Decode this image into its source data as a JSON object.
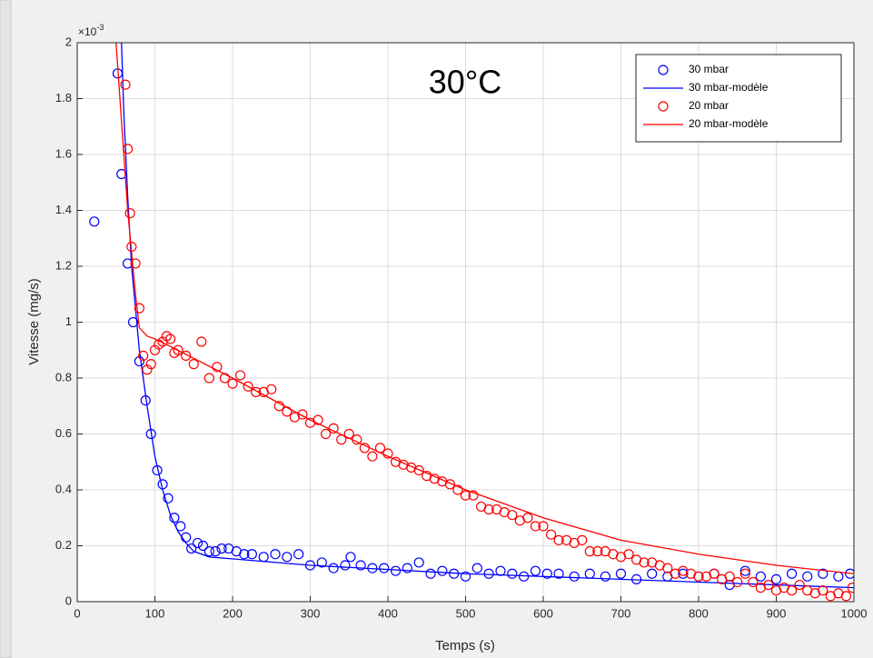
{
  "chart_data": {
    "type": "scatter",
    "annotation": "30°C",
    "xlabel": "Temps (s)",
    "ylabel": "Vitesse (mg/s)",
    "y_multiplier": {
      "base": "×10",
      "exponent": "-3"
    },
    "xlim": [
      0,
      1000
    ],
    "ylim": [
      0,
      2
    ],
    "xticks": [
      0,
      100,
      200,
      300,
      400,
      500,
      600,
      700,
      800,
      900,
      1000
    ],
    "yticks": [
      0,
      0.2,
      0.4,
      0.6,
      0.8,
      1,
      1.2,
      1.4,
      1.6,
      1.8,
      2
    ],
    "grid": true,
    "legend": "northeast",
    "series": [
      {
        "name": "30 mbar",
        "type": "scatter",
        "color": "#0000ff",
        "x": [
          22,
          52,
          57,
          65,
          72,
          80,
          88,
          95,
          103,
          110,
          117,
          125,
          133,
          140,
          147,
          155,
          162,
          170,
          178,
          186,
          195,
          205,
          215,
          225,
          240,
          255,
          270,
          285,
          300,
          315,
          330,
          345,
          352,
          365,
          380,
          395,
          410,
          425,
          440,
          455,
          470,
          485,
          500,
          515,
          530,
          545,
          560,
          575,
          590,
          605,
          620,
          640,
          660,
          680,
          700,
          720,
          740,
          760,
          780,
          800,
          820,
          840,
          860,
          880,
          900,
          920,
          940,
          960,
          980,
          995
        ],
        "values": [
          1.36,
          1.89,
          1.53,
          1.21,
          1.0,
          0.86,
          0.72,
          0.6,
          0.47,
          0.42,
          0.37,
          0.3,
          0.27,
          0.23,
          0.19,
          0.21,
          0.2,
          0.18,
          0.18,
          0.19,
          0.19,
          0.18,
          0.17,
          0.17,
          0.16,
          0.17,
          0.16,
          0.17,
          0.13,
          0.14,
          0.12,
          0.13,
          0.16,
          0.13,
          0.12,
          0.12,
          0.11,
          0.12,
          0.14,
          0.1,
          0.11,
          0.1,
          0.09,
          0.12,
          0.1,
          0.11,
          0.1,
          0.09,
          0.11,
          0.1,
          0.1,
          0.09,
          0.1,
          0.09,
          0.1,
          0.08,
          0.1,
          0.09,
          0.1,
          0.09,
          0.1,
          0.06,
          0.11,
          0.09,
          0.08,
          0.1,
          0.09,
          0.1,
          0.09,
          0.1
        ]
      },
      {
        "name": "30 mbar-modèle",
        "type": "line",
        "color": "#0000ff",
        "x": [
          57,
          60,
          65,
          70,
          75,
          80,
          90,
          100,
          110,
          120,
          130,
          140,
          150,
          170,
          300,
          500,
          700,
          1000
        ],
        "values": [
          2.0,
          1.75,
          1.45,
          1.2,
          1.05,
          0.9,
          0.7,
          0.52,
          0.4,
          0.31,
          0.25,
          0.21,
          0.18,
          0.16,
          0.13,
          0.1,
          0.08,
          0.05
        ]
      },
      {
        "name": "20 mbar",
        "type": "scatter",
        "color": "#ff0000",
        "x": [
          62,
          65,
          68,
          70,
          75,
          80,
          85,
          90,
          95,
          100,
          105,
          110,
          115,
          120,
          125,
          130,
          140,
          150,
          160,
          170,
          180,
          190,
          200,
          210,
          220,
          230,
          240,
          250,
          260,
          270,
          280,
          290,
          300,
          310,
          320,
          330,
          340,
          350,
          360,
          370,
          380,
          390,
          400,
          410,
          420,
          430,
          440,
          450,
          460,
          470,
          480,
          490,
          500,
          510,
          520,
          530,
          540,
          550,
          560,
          570,
          580,
          590,
          600,
          610,
          620,
          630,
          640,
          650,
          660,
          670,
          680,
          690,
          700,
          710,
          720,
          730,
          740,
          750,
          760,
          770,
          780,
          790,
          800,
          810,
          820,
          830,
          840,
          850,
          860,
          870,
          880,
          890,
          900,
          910,
          920,
          930,
          940,
          950,
          960,
          970,
          980,
          990,
          998
        ],
        "values": [
          1.85,
          1.62,
          1.39,
          1.27,
          1.21,
          1.05,
          0.88,
          0.83,
          0.85,
          0.9,
          0.92,
          0.93,
          0.95,
          0.94,
          0.89,
          0.9,
          0.88,
          0.85,
          0.93,
          0.8,
          0.84,
          0.8,
          0.78,
          0.81,
          0.77,
          0.75,
          0.75,
          0.76,
          0.7,
          0.68,
          0.66,
          0.67,
          0.64,
          0.65,
          0.6,
          0.62,
          0.58,
          0.6,
          0.58,
          0.55,
          0.52,
          0.55,
          0.53,
          0.5,
          0.49,
          0.48,
          0.47,
          0.45,
          0.44,
          0.43,
          0.42,
          0.4,
          0.38,
          0.38,
          0.34,
          0.33,
          0.33,
          0.32,
          0.31,
          0.29,
          0.3,
          0.27,
          0.27,
          0.24,
          0.22,
          0.22,
          0.21,
          0.22,
          0.18,
          0.18,
          0.18,
          0.17,
          0.16,
          0.17,
          0.15,
          0.14,
          0.14,
          0.13,
          0.12,
          0.1,
          0.11,
          0.1,
          0.09,
          0.09,
          0.1,
          0.08,
          0.09,
          0.07,
          0.1,
          0.07,
          0.05,
          0.06,
          0.04,
          0.05,
          0.04,
          0.06,
          0.04,
          0.03,
          0.04,
          0.02,
          0.03,
          0.02,
          0.05
        ]
      },
      {
        "name": "20 mbar-modèle",
        "type": "line",
        "color": "#ff0000",
        "x": [
          50,
          55,
          60,
          65,
          70,
          75,
          80,
          90,
          100,
          115,
          200,
          300,
          400,
          500,
          600,
          700,
          800,
          900,
          1000
        ],
        "values": [
          2.0,
          1.8,
          1.6,
          1.4,
          1.25,
          1.1,
          0.98,
          0.95,
          0.94,
          0.92,
          0.8,
          0.65,
          0.52,
          0.4,
          0.3,
          0.22,
          0.17,
          0.13,
          0.1
        ]
      }
    ]
  }
}
